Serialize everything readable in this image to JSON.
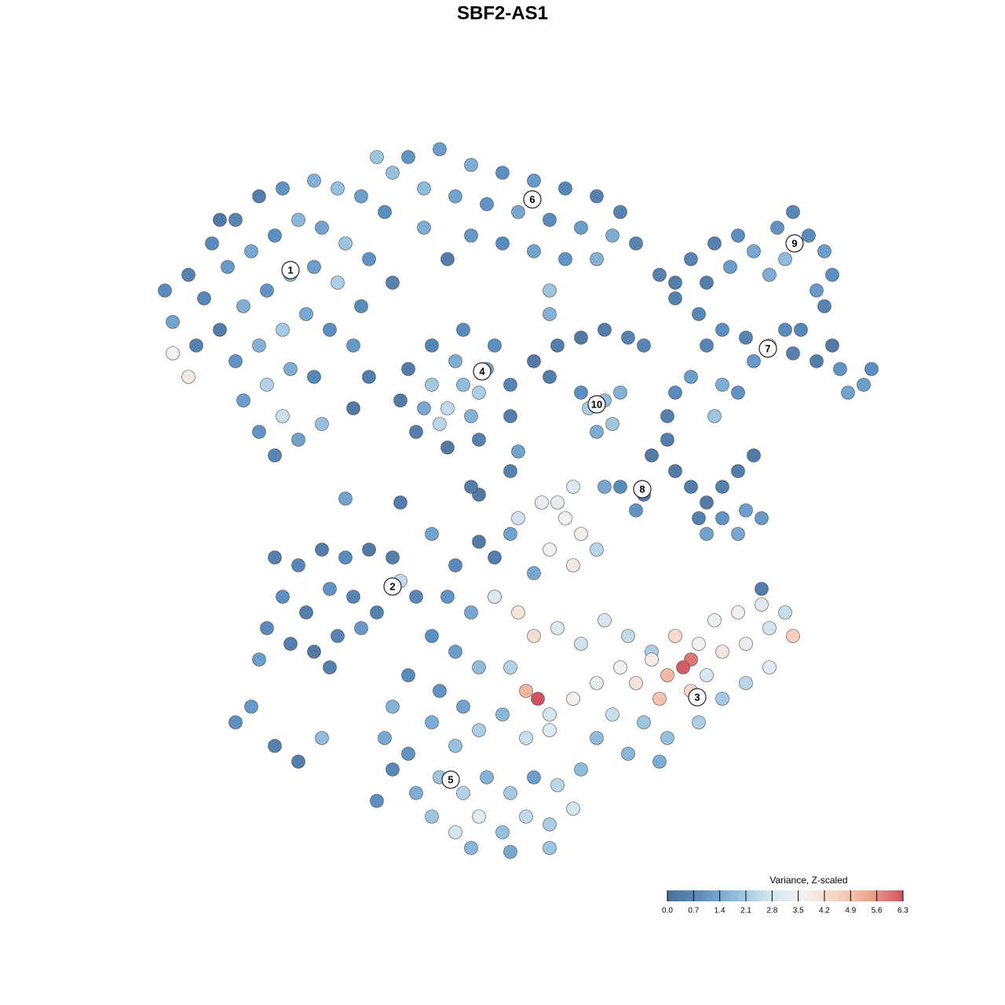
{
  "chart_data": {
    "type": "scatter",
    "title": "SBF2-AS1",
    "xlim": [
      0,
      128
    ],
    "ylim": [
      0,
      128
    ],
    "x": [
      22,
      24,
      27,
      30,
      33,
      36,
      40,
      43,
      46,
      49,
      26,
      29,
      32,
      35,
      38,
      41,
      44,
      47,
      50,
      28,
      31,
      34,
      37,
      40,
      43,
      46,
      30,
      33,
      36,
      39,
      42,
      45,
      31,
      34,
      37,
      40,
      33,
      36,
      38,
      41,
      35,
      24,
      22,
      28,
      21,
      25,
      47,
      45,
      52,
      56,
      60,
      64,
      68,
      72,
      76,
      79,
      54,
      58,
      62,
      66,
      70,
      74,
      78,
      81,
      50,
      48,
      60,
      64,
      68,
      72,
      76,
      84,
      86,
      70,
      70,
      57,
      54,
      51,
      52,
      53,
      55,
      57,
      59,
      61,
      63,
      65,
      65,
      55,
      57,
      59,
      61,
      58,
      60,
      62,
      56,
      54,
      75,
      77,
      78,
      76,
      79,
      74,
      68,
      71,
      74,
      77,
      80,
      82,
      70,
      88,
      91,
      94,
      96,
      99,
      101,
      103,
      105,
      106,
      104,
      100,
      98,
      93,
      90,
      102,
      105,
      86,
      89,
      92,
      95,
      98,
      101,
      104,
      107,
      110,
      111,
      100,
      96,
      90,
      88,
      92,
      94,
      91,
      86,
      85,
      108,
      106,
      83,
      85,
      86,
      88,
      90,
      92,
      94,
      96,
      89,
      92,
      95,
      97,
      90,
      94,
      82,
      79,
      81,
      77,
      73,
      71,
      35,
      38,
      41,
      44,
      47,
      50,
      36,
      39,
      42,
      45,
      48,
      34,
      37,
      40,
      43,
      46,
      33,
      42,
      51,
      53,
      30,
      35,
      38,
      32,
      41,
      55,
      58,
      61,
      63,
      57,
      60,
      63,
      55,
      58,
      61,
      56,
      59,
      52,
      50,
      49,
      52,
      55,
      58,
      61,
      64,
      50,
      53,
      56,
      59,
      62,
      65,
      68,
      71,
      74,
      55,
      58,
      61,
      64,
      67,
      70,
      73,
      60,
      65,
      70,
      48,
      67,
      70,
      66,
      69,
      72,
      74,
      76,
      70,
      73,
      68,
      63,
      66,
      68,
      71,
      74,
      77,
      80,
      83,
      86,
      89,
      92,
      95,
      98,
      101,
      100,
      97,
      94,
      91,
      88,
      87,
      85,
      88,
      84,
      81,
      79,
      76,
      73,
      70,
      67,
      68.5,
      65,
      78,
      82,
      85,
      89,
      92,
      95,
      98,
      80,
      84,
      76,
      83,
      90,
      44,
      51,
      61,
      65,
      97,
      65,
      66,
      60
    ],
    "y": [
      87,
      93,
      97,
      100,
      103,
      104,
      105,
      104,
      103,
      101,
      90,
      94,
      96,
      98,
      100,
      99,
      97,
      95,
      92,
      86,
      89,
      91,
      93,
      94,
      92,
      89,
      82,
      84,
      86,
      88,
      86,
      84,
      77,
      79,
      81,
      80,
      73,
      75,
      72,
      74,
      70,
      80,
      83,
      100,
      91,
      84,
      80,
      76,
      108,
      109,
      107,
      106,
      105,
      104,
      103,
      101,
      104,
      103,
      102,
      101,
      100,
      99,
      98,
      97,
      106,
      108,
      98,
      97,
      96,
      95,
      95,
      93,
      92,
      91,
      88,
      95,
      99,
      77,
      81,
      73,
      84,
      71,
      86,
      72,
      84,
      79,
      75,
      79,
      76,
      79,
      78,
      82,
      75,
      81,
      74,
      76,
      76,
      77,
      74,
      73,
      78,
      78,
      82,
      84,
      85,
      86,
      85,
      84,
      80,
      95,
      97,
      98,
      96,
      99,
      101,
      98,
      96,
      93,
      91,
      95,
      93,
      94,
      92,
      86,
      89,
      90,
      88,
      86,
      85,
      84,
      83,
      82,
      81,
      79,
      81,
      86,
      82,
      84,
      80,
      79,
      78,
      75,
      78,
      75,
      78,
      84,
      70,
      72,
      68,
      66,
      64,
      66,
      68,
      70,
      62,
      62,
      63,
      62,
      60,
      60,
      65,
      66,
      63,
      66,
      66,
      64,
      57,
      56,
      58,
      57,
      58,
      57,
      52,
      50,
      53,
      52,
      50,
      48,
      46,
      45,
      47,
      48,
      44,
      43,
      54,
      52,
      36,
      33,
      31,
      38,
      34,
      60,
      56,
      59,
      57,
      52,
      50,
      52,
      47,
      45,
      43,
      40,
      38,
      42,
      38,
      34,
      32,
      36,
      33,
      35,
      37,
      30,
      27,
      29,
      27,
      29,
      27,
      29,
      28,
      30,
      24,
      22,
      24,
      22,
      24,
      23,
      25,
      20,
      19.5,
      20,
      26,
      34,
      35,
      62,
      64,
      62,
      60,
      58,
      58,
      56,
      55,
      52,
      50,
      47,
      48,
      46,
      49,
      47,
      45,
      47,
      46,
      45,
      46,
      48,
      47,
      50,
      51,
      50,
      49,
      44,
      43,
      42,
      40,
      39,
      41,
      43,
      41,
      39,
      37,
      40,
      39,
      43,
      37,
      36,
      34,
      36,
      39,
      41,
      43,
      32,
      31,
      34,
      44,
      42,
      64.5,
      64,
      65,
      60,
      53,
      68,
      70.5,
      66
    ],
    "values": [
      1.3,
      0.5,
      0.8,
      0.6,
      0.4,
      1.0,
      1.6,
      1.9,
      1.2,
      0.9,
      0.7,
      1.1,
      1.4,
      0.9,
      1.7,
      1.3,
      2.0,
      1.0,
      0.5,
      0.4,
      1.5,
      1.0,
      1.8,
      1.2,
      2.2,
      0.8,
      1.0,
      1.6,
      2.1,
      1.4,
      0.9,
      1.1,
      1.2,
      2.3,
      1.5,
      0.7,
      1.0,
      2.6,
      1.3,
      1.9,
      0.6,
      3.9,
      3.6,
      0.3,
      0.8,
      0.5,
      0.4,
      0.3,
      1.0,
      1.2,
      1.5,
      0.9,
      1.1,
      0.7,
      0.5,
      0.6,
      1.8,
      1.3,
      1.0,
      1.4,
      0.8,
      1.2,
      1.5,
      0.6,
      1.9,
      2.0,
      1.1,
      0.8,
      1.3,
      1.0,
      1.6,
      0.5,
      0.4,
      2.0,
      1.6,
      0.4,
      1.5,
      0.3,
      0.4,
      0.4,
      0.6,
      0.3,
      0.8,
      0.5,
      0.9,
      0.6,
      0.4,
      2.1,
      2.5,
      1.8,
      2.2,
      1.5,
      1.6,
      1.3,
      2.4,
      1.4,
      2.2,
      1.8,
      2.0,
      1.5,
      1.6,
      0.9,
      0.3,
      0.4,
      0.3,
      0.4,
      0.5,
      0.6,
      0.4,
      0.6,
      0.5,
      0.9,
      1.4,
      1.0,
      0.7,
      0.8,
      1.2,
      0.9,
      1.1,
      1.8,
      1.5,
      1.2,
      0.4,
      0.7,
      0.6,
      0.5,
      0.7,
      0.9,
      0.6,
      2.5,
      0.5,
      0.4,
      1.0,
      1.2,
      0.9,
      0.8,
      1.1,
      0.6,
      1.2,
      1.5,
      1.0,
      2.0,
      0.8,
      0.5,
      1.3,
      0.3,
      0.3,
      0.4,
      0.3,
      0.4,
      0.3,
      0.5,
      0.4,
      0.3,
      0.5,
      1.0,
      1.2,
      1.1,
      1.3,
      1.4,
      0.4,
      0.8,
      1.0,
      1.4,
      3.0,
      3.3,
      0.5,
      0.7,
      0.4,
      0.8,
      0.3,
      0.4,
      0.9,
      0.4,
      1.0,
      0.6,
      0.5,
      0.8,
      0.4,
      0.3,
      0.6,
      1.1,
      1.2,
      0.5,
      2.5,
      0.7,
      0.9,
      0.5,
      0.4,
      1.1,
      1.8,
      1.3,
      0.8,
      0.3,
      0.4,
      1.0,
      1.4,
      1.6,
      0.9,
      1.2,
      1.8,
      1.0,
      1.3,
      0.8,
      1.6,
      1.4,
      1.0,
      1.5,
      1.9,
      2.2,
      1.7,
      0.7,
      1.5,
      2.0,
      2.3,
      1.6,
      2.1,
      1.2,
      2.4,
      1.8,
      2.0,
      2.8,
      3.2,
      1.9,
      2.5,
      2.2,
      2.8,
      1.7,
      1.4,
      2.0,
      0.9,
      2.6,
      3.0,
      2.7,
      3.3,
      3.6,
      3.8,
      2.4,
      3.5,
      3.9,
      1.4,
      3.0,
      4.1,
      4.2,
      3.0,
      2.7,
      2.9,
      2.5,
      2.2,
      4.3,
      3.6,
      4.0,
      3.3,
      2.8,
      4.6,
      2.6,
      3.1,
      3.7,
      3.4,
      5.9,
      6.2,
      5.0,
      4.4,
      4.8,
      4.1,
      3.5,
      3.2,
      3.7,
      2.9,
      5.1,
      6.3,
      2.3,
      2.6,
      2.0,
      1.9,
      2.2,
      2.1,
      2.4,
      3.1,
      1.7,
      1.5,
      1.8,
      3.8,
      2.9,
      1.3,
      0.4,
      0.3,
      1.3,
      0.4,
      0.5,
      1.3,
      0.4
    ],
    "clusters": {
      "labels": [
        "1",
        "6",
        "9",
        "7",
        "4",
        "10",
        "8",
        "2",
        "3",
        "5"
      ],
      "x": [
        37,
        67.8,
        101.2,
        97.8,
        61.4,
        76,
        81.8,
        50,
        88.8,
        57.4
      ],
      "y": [
        93.6,
        102.6,
        97,
        83.6,
        80.7,
        76.5,
        65.7,
        53.3,
        39.2,
        28.7
      ]
    },
    "colorbar": {
      "title": "Variance, Z-scaled",
      "lim": [
        0,
        6.3
      ],
      "colors": [
        "#4d6f96",
        "#5b8fc2",
        "#8fbcdc",
        "#cfe4ef",
        "#f4f3f1",
        "#f8d4c2",
        "#eda68e",
        "#d0535f"
      ],
      "ticks": [
        {
          "value": 0,
          "label": "0.0"
        },
        {
          "value": 0.7,
          "label": "0.7"
        },
        {
          "value": 1.4,
          "label": "1.4"
        },
        {
          "value": 2.1,
          "label": "2.1"
        },
        {
          "value": 2.8,
          "label": "2.8"
        },
        {
          "value": 3.5,
          "label": "3.5"
        },
        {
          "value": 4.2,
          "label": "4.2"
        },
        {
          "value": 4.9,
          "label": "4.9"
        },
        {
          "value": 5.6,
          "label": "5.6"
        },
        {
          "value": 6.3,
          "label": "6.3"
        }
      ]
    }
  }
}
